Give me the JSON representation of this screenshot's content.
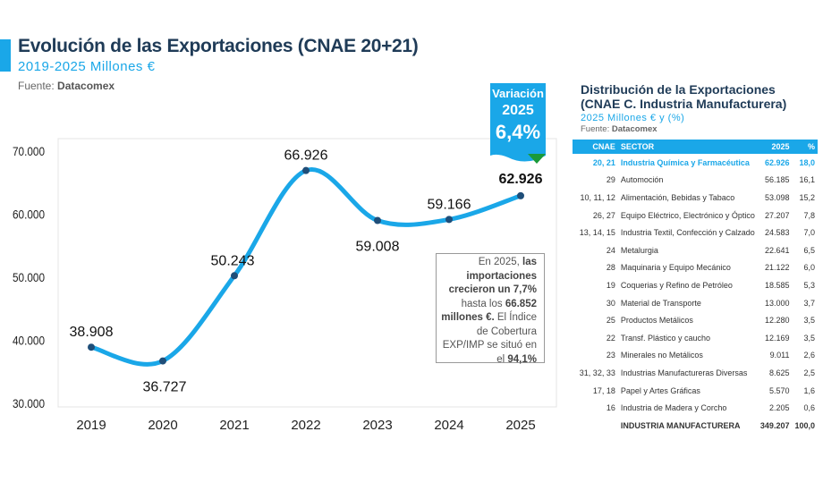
{
  "header": {
    "title": "Evolución de las Exportaciones (CNAE 20+21)",
    "subtitle": "2019-2025 Millones €",
    "source_label": "Fuente:",
    "source": "Datacomex"
  },
  "badge": {
    "label": "Variación",
    "year": "2025",
    "value": "6,4%",
    "trend": "down-arrow-icon",
    "color": "#1aa7e8",
    "arrow_color": "#1a9a3a"
  },
  "note": {
    "p1": "En 2025, ",
    "b1": "las importaciones crecieron un 7,7%",
    "p2": " hasta los ",
    "b2": "66.852 millones €.",
    "p3": " El Índice de Cobertura EXP/IMP se situó en el ",
    "b3": "94,1%"
  },
  "chart_data": {
    "type": "line",
    "categories": [
      "2019",
      "2020",
      "2021",
      "2022",
      "2023",
      "2024",
      "2025"
    ],
    "series": [
      {
        "values": [
          38908,
          36727,
          50243,
          66926,
          59008,
          59166,
          62926
        ]
      }
    ],
    "data_labels": [
      "38.908",
      "36.727",
      "50.243",
      "66.926",
      "59.008",
      "59.166",
      "62.926"
    ],
    "ylim": [
      30000,
      70000
    ],
    "yticks": [
      "30.000",
      "40.000",
      "50.000",
      "60.000",
      "70.000"
    ],
    "line_color": "#1aa7e8",
    "marker_color": "#1f4e79",
    "grid": false
  },
  "table": {
    "title": "Distribución de la Exportaciones (CNAE C. Industria Manufacturera)",
    "title1": "Distribución de la Exportaciones",
    "title2": "(CNAE C. Industria Manufacturera)",
    "subtitle": "2025 Millones € y (%)",
    "source_label": "Fuente:",
    "source": "Datacomex",
    "columns": [
      "CNAE",
      "SECTOR",
      "2025",
      "%"
    ],
    "rows": [
      [
        "20, 21",
        "Industria Química y Farmacéutica",
        "62.926",
        "18,0"
      ],
      [
        "29",
        "Automoción",
        "56.185",
        "16,1"
      ],
      [
        "10, 11, 12",
        "Alimentación, Bebidas y Tabaco",
        "53.098",
        "15,2"
      ],
      [
        "26, 27",
        "Equipo Eléctrico, Electrónico y Óptico",
        "27.207",
        "7,8"
      ],
      [
        "13, 14, 15",
        "Industria Textil, Confección y Calzado",
        "24.583",
        "7,0"
      ],
      [
        "24",
        "Metalurgia",
        "22.641",
        "6,5"
      ],
      [
        "28",
        "Maquinaria y Equipo Mecánico",
        "21.122",
        "6,0"
      ],
      [
        "19",
        "Coquerias y Refino de Petróleo",
        "18.585",
        "5,3"
      ],
      [
        "30",
        "Material de Transporte",
        "13.000",
        "3,7"
      ],
      [
        "25",
        "Productos Metálicos",
        "12.280",
        "3,5"
      ],
      [
        "22",
        "Transf. Plástico y caucho",
        "12.169",
        "3,5"
      ],
      [
        "23",
        "Minerales no Metálicos",
        "9.011",
        "2,6"
      ],
      [
        "31, 32, 33",
        "Industrias Manufactureras Diversas",
        "8.625",
        "2,5"
      ],
      [
        "17, 18",
        "Papel y Artes Gráficas",
        "5.570",
        "1,6"
      ],
      [
        "16",
        "Industria de Madera y Corcho",
        "2.205",
        "0,6"
      ]
    ],
    "total": [
      "",
      "INDUSTRIA MANUFACTURERA",
      "349.207",
      "100,0"
    ]
  }
}
